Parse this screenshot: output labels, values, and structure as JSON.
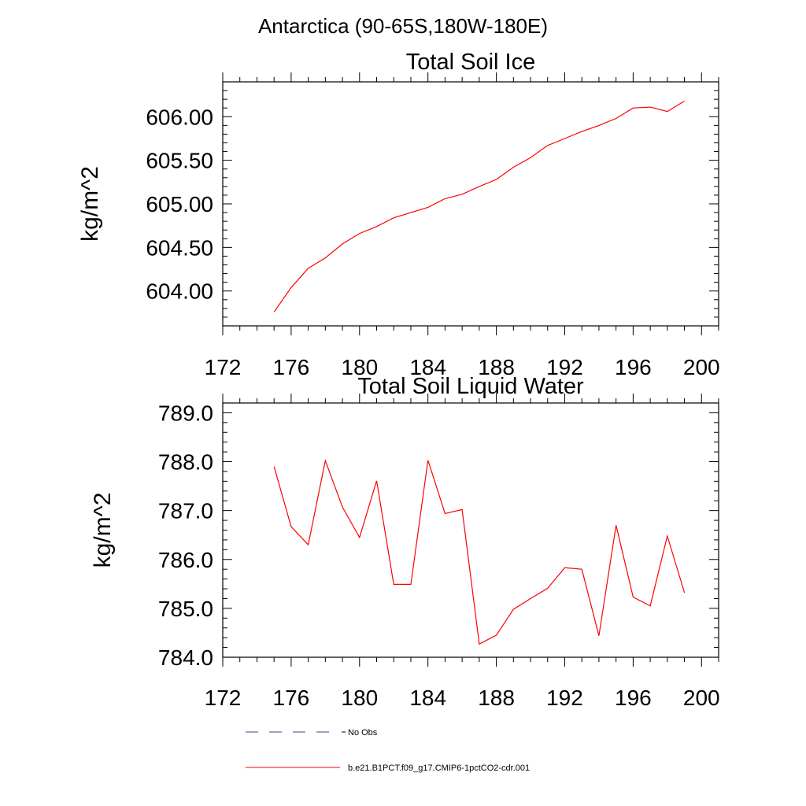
{
  "page": {
    "title": "Antarctica (90-65S,180W-180E)"
  },
  "chart_data": [
    {
      "type": "line",
      "title": "Total Soil Ice",
      "xlabel": "",
      "ylabel": "kg/m^2",
      "xlim": [
        172,
        201
      ],
      "ylim": [
        603.6,
        606.4
      ],
      "xticks": [
        172,
        176,
        180,
        184,
        188,
        192,
        196,
        200
      ],
      "yticks": [
        604.0,
        604.5,
        605.0,
        605.5,
        606.0
      ],
      "yticklabels": [
        "604.00",
        "604.50",
        "605.00",
        "605.50",
        "606.00"
      ],
      "series": [
        {
          "name": "b.e21.B1PCT.f09_g17.CMIP6-1pctCO2-cdr.001",
          "color": "#ff0000",
          "x": [
            175,
            176,
            177,
            178,
            179,
            180,
            181,
            182,
            183,
            184,
            185,
            186,
            187,
            188,
            189,
            190,
            191,
            192,
            193,
            194,
            195,
            196,
            197,
            198,
            199
          ],
          "values": [
            603.76,
            604.04,
            604.26,
            604.38,
            604.54,
            604.66,
            604.74,
            604.84,
            604.9,
            604.96,
            605.06,
            605.11,
            605.2,
            605.28,
            605.42,
            605.53,
            605.67,
            605.75,
            605.83,
            605.9,
            605.98,
            606.1,
            606.11,
            606.06,
            606.18
          ]
        }
      ]
    },
    {
      "type": "line",
      "title": "Total Soil Liquid Water",
      "xlabel": "",
      "ylabel": "kg/m^2",
      "xlim": [
        172,
        201
      ],
      "ylim": [
        784.0,
        789.2
      ],
      "xticks": [
        172,
        176,
        180,
        184,
        188,
        192,
        196,
        200
      ],
      "yticks": [
        784.0,
        785.0,
        786.0,
        787.0,
        788.0,
        789.0
      ],
      "yticklabels": [
        "784.0",
        "785.0",
        "786.0",
        "787.0",
        "788.0",
        "789.0"
      ],
      "series": [
        {
          "name": "b.e21.B1PCT.f09_g17.CMIP6-1pctCO2-cdr.001",
          "color": "#ff0000",
          "x": [
            175,
            176,
            177,
            178,
            179,
            180,
            181,
            182,
            183,
            184,
            185,
            186,
            187,
            188,
            189,
            190,
            191,
            192,
            193,
            194,
            195,
            196,
            197,
            198,
            199
          ],
          "values": [
            787.9,
            786.67,
            786.3,
            788.02,
            787.07,
            786.45,
            787.61,
            785.49,
            785.49,
            788.03,
            786.94,
            787.02,
            784.27,
            784.45,
            784.98,
            785.2,
            785.41,
            785.83,
            785.8,
            784.44,
            786.7,
            785.23,
            785.05,
            786.48,
            785.32
          ]
        }
      ]
    }
  ],
  "legend": [
    {
      "label": "No Obs",
      "color": "#3b4a8c",
      "style": "dashed"
    },
    {
      "label": "b.e21.B1PCT.f09_g17.CMIP6-1pctCO2-cdr.001",
      "color": "#ff0000",
      "style": "solid"
    }
  ]
}
